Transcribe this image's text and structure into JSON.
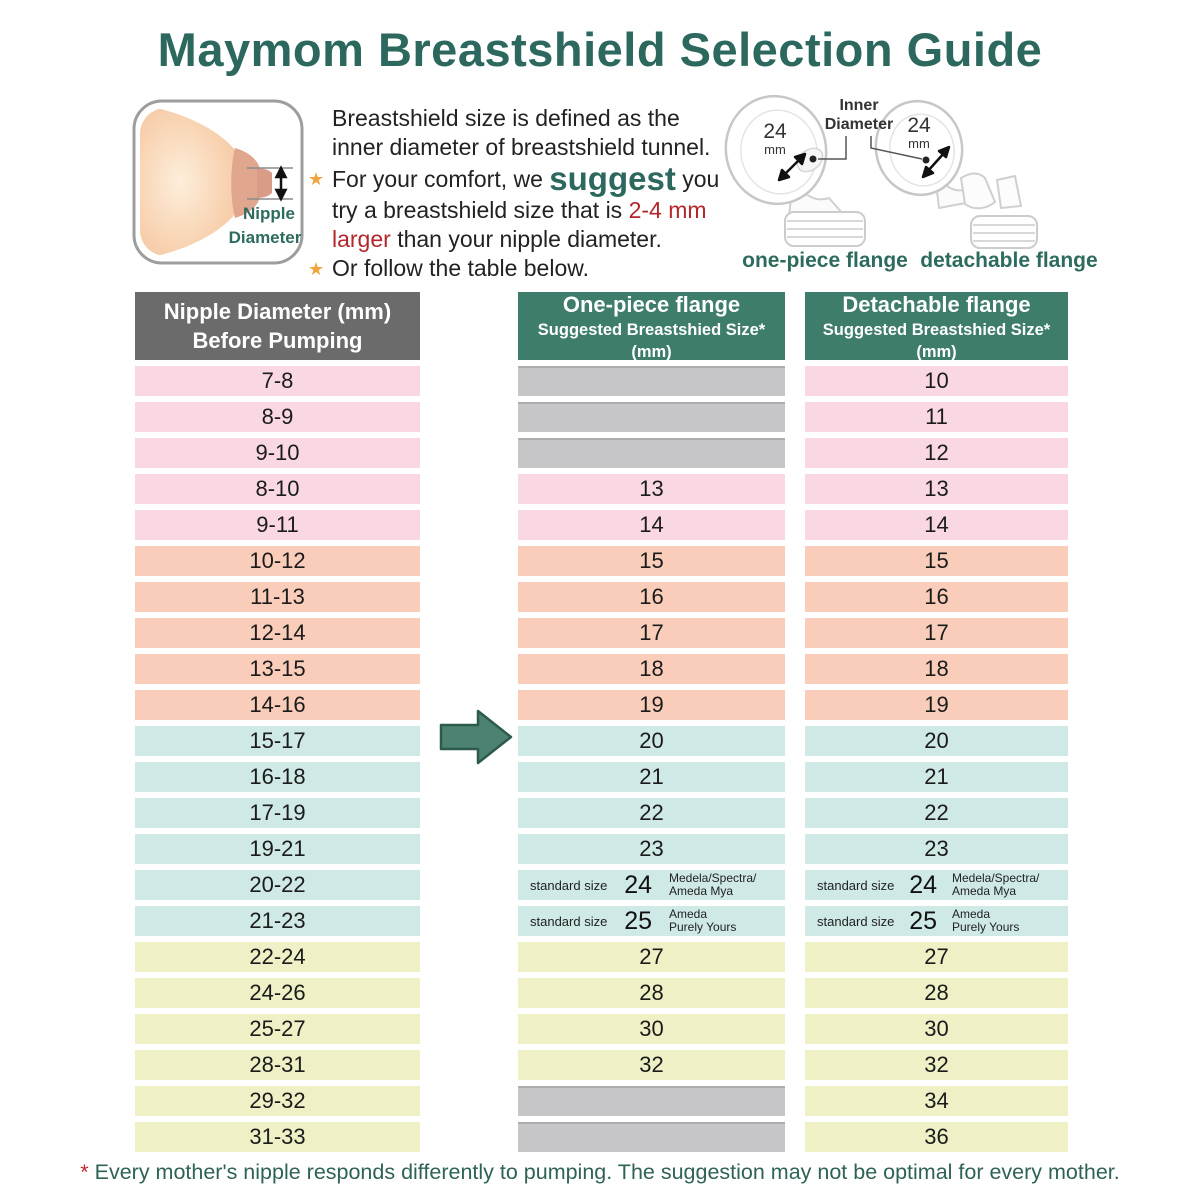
{
  "title": "Maymom Breastshield Selection Guide",
  "intro": {
    "bullet_star": "★",
    "line1": "Breastshield size is defined as the",
    "line2": "inner diameter of breastshield tunnel.",
    "b1_pre": "For your comfort, we ",
    "b1_suggest": "suggest",
    "b1_post": " you",
    "b1_l2_pre": "try a breastshield size that is ",
    "b1_l2_red": "2-4 mm",
    "b1_l3_red": "larger",
    "b1_l3_post": " than your nipple diameter.",
    "b2": "Or follow the table below."
  },
  "breast_diagram": {
    "label_line1": "Nipple",
    "label_line2": "Diameter"
  },
  "flange_diagram": {
    "inner_diameter_line1": "Inner",
    "inner_diameter_line2": "Diameter",
    "one_piece_size": "24",
    "one_piece_unit": "mm",
    "detachable_size": "24",
    "detachable_unit": "mm",
    "one_piece_caption": "one-piece flange",
    "detachable_caption": "detachable flange"
  },
  "table": {
    "headers": {
      "nipple_line1": "Nipple Diameter (mm)",
      "nipple_line2": "Before Pumping",
      "one_piece_line1": "One-piece flange",
      "one_piece_line2": "Suggested Breastshied Size*(mm)",
      "detachable_line1": "Detachable flange",
      "detachable_line2": "Suggested Breastshied Size*(mm)"
    },
    "rows": [
      {
        "band": "pink",
        "nipple": "7-8",
        "one_piece": null,
        "detachable": "10"
      },
      {
        "band": "pink",
        "nipple": "8-9",
        "one_piece": null,
        "detachable": "11"
      },
      {
        "band": "pink",
        "nipple": "9-10",
        "one_piece": null,
        "detachable": "12"
      },
      {
        "band": "pink",
        "nipple": "8-10",
        "one_piece": "13",
        "detachable": "13"
      },
      {
        "band": "pink",
        "nipple": "9-11",
        "one_piece": "14",
        "detachable": "14"
      },
      {
        "band": "salmon",
        "nipple": "10-12",
        "one_piece": "15",
        "detachable": "15"
      },
      {
        "band": "salmon",
        "nipple": "11-13",
        "one_piece": "16",
        "detachable": "16"
      },
      {
        "band": "salmon",
        "nipple": "12-14",
        "one_piece": "17",
        "detachable": "17"
      },
      {
        "band": "salmon",
        "nipple": "13-15",
        "one_piece": "18",
        "detachable": "18"
      },
      {
        "band": "salmon",
        "nipple": "14-16",
        "one_piece": "19",
        "detachable": "19"
      },
      {
        "band": "blue",
        "nipple": "15-17",
        "one_piece": "20",
        "detachable": "20"
      },
      {
        "band": "blue",
        "nipple": "16-18",
        "one_piece": "21",
        "detachable": "21"
      },
      {
        "band": "blue",
        "nipple": "17-19",
        "one_piece": "22",
        "detachable": "22"
      },
      {
        "band": "blue",
        "nipple": "19-21",
        "one_piece": "23",
        "detachable": "23"
      },
      {
        "band": "blue",
        "nipple": "20-22",
        "one_piece": {
          "label": "standard size",
          "size": "24",
          "brands": [
            "Medela/Spectra/",
            "Ameda Mya"
          ]
        },
        "detachable": {
          "label": "standard size",
          "size": "24",
          "brands": [
            "Medela/Spectra/",
            "Ameda Mya"
          ]
        }
      },
      {
        "band": "blue",
        "nipple": "21-23",
        "one_piece": {
          "label": "standard size",
          "size": "25",
          "brands": [
            "Ameda",
            "Purely Yours"
          ]
        },
        "detachable": {
          "label": "standard size",
          "size": "25",
          "brands": [
            "Ameda",
            "Purely Yours"
          ]
        }
      },
      {
        "band": "yellow",
        "nipple": "22-24",
        "one_piece": "27",
        "detachable": "27"
      },
      {
        "band": "yellow",
        "nipple": "24-26",
        "one_piece": "28",
        "detachable": "28"
      },
      {
        "band": "yellow",
        "nipple": "25-27",
        "one_piece": "30",
        "detachable": "30"
      },
      {
        "band": "yellow",
        "nipple": "28-31",
        "one_piece": "32",
        "detachable": "32"
      },
      {
        "band": "yellow",
        "nipple": "29-32",
        "one_piece": null,
        "detachable": "34"
      },
      {
        "band": "yellow",
        "nipple": "31-33",
        "one_piece": null,
        "detachable": "36"
      }
    ]
  },
  "footnote": {
    "star": "*",
    "text": "Every mother's nipple responds differently to pumping. The suggestion may not be optimal for every mother."
  },
  "colors": {
    "title_teal": "#2c685e",
    "header_teal": "#3e7d6c",
    "header_gray": "#6b6b6b",
    "pink": "#f9d8e4",
    "salmon": "#f9cdb9",
    "blue": "#cfe9e6",
    "yellow": "#eff0c5",
    "gray_cell": "#c6c5c8",
    "accent_red": "#b3262b",
    "star_orange": "#f0a43c",
    "arrow_teal": "#4d8272"
  },
  "chart_data": {
    "type": "table",
    "title": "Maymom Breastshield Selection Guide",
    "columns": [
      "Nipple Diameter (mm) Before Pumping",
      "One-piece flange Suggested Breastshied Size*(mm)",
      "Detachable flange Suggested Breastshied Size*(mm)"
    ],
    "rows": [
      [
        "7-8",
        null,
        10
      ],
      [
        "8-9",
        null,
        11
      ],
      [
        "9-10",
        null,
        12
      ],
      [
        "8-10",
        13,
        13
      ],
      [
        "9-11",
        14,
        14
      ],
      [
        "10-12",
        15,
        15
      ],
      [
        "11-13",
        16,
        16
      ],
      [
        "12-14",
        17,
        17
      ],
      [
        "13-15",
        18,
        18
      ],
      [
        "14-16",
        19,
        19
      ],
      [
        "15-17",
        20,
        20
      ],
      [
        "16-18",
        21,
        21
      ],
      [
        "17-19",
        22,
        22
      ],
      [
        "19-21",
        23,
        23
      ],
      [
        "20-22",
        "24 (standard size, Medela/Spectra/Ameda Mya)",
        "24 (standard size, Medela/Spectra/Ameda Mya)"
      ],
      [
        "21-23",
        "25 (standard size, Ameda Purely Yours)",
        "25 (standard size, Ameda Purely Yours)"
      ],
      [
        "22-24",
        27,
        27
      ],
      [
        "24-26",
        28,
        28
      ],
      [
        "25-27",
        30,
        30
      ],
      [
        "28-31",
        32,
        32
      ],
      [
        "29-32",
        null,
        34
      ],
      [
        "31-33",
        null,
        36
      ]
    ],
    "row_color_bands": {
      "pink": [
        "7-8",
        "8-9",
        "9-10",
        "8-10",
        "9-11"
      ],
      "salmon": [
        "10-12",
        "11-13",
        "12-14",
        "13-15",
        "14-16"
      ],
      "blue": [
        "15-17",
        "16-18",
        "17-19",
        "19-21",
        "20-22",
        "21-23"
      ],
      "yellow": [
        "22-24",
        "24-26",
        "25-27",
        "28-31",
        "29-32",
        "31-33"
      ]
    }
  }
}
